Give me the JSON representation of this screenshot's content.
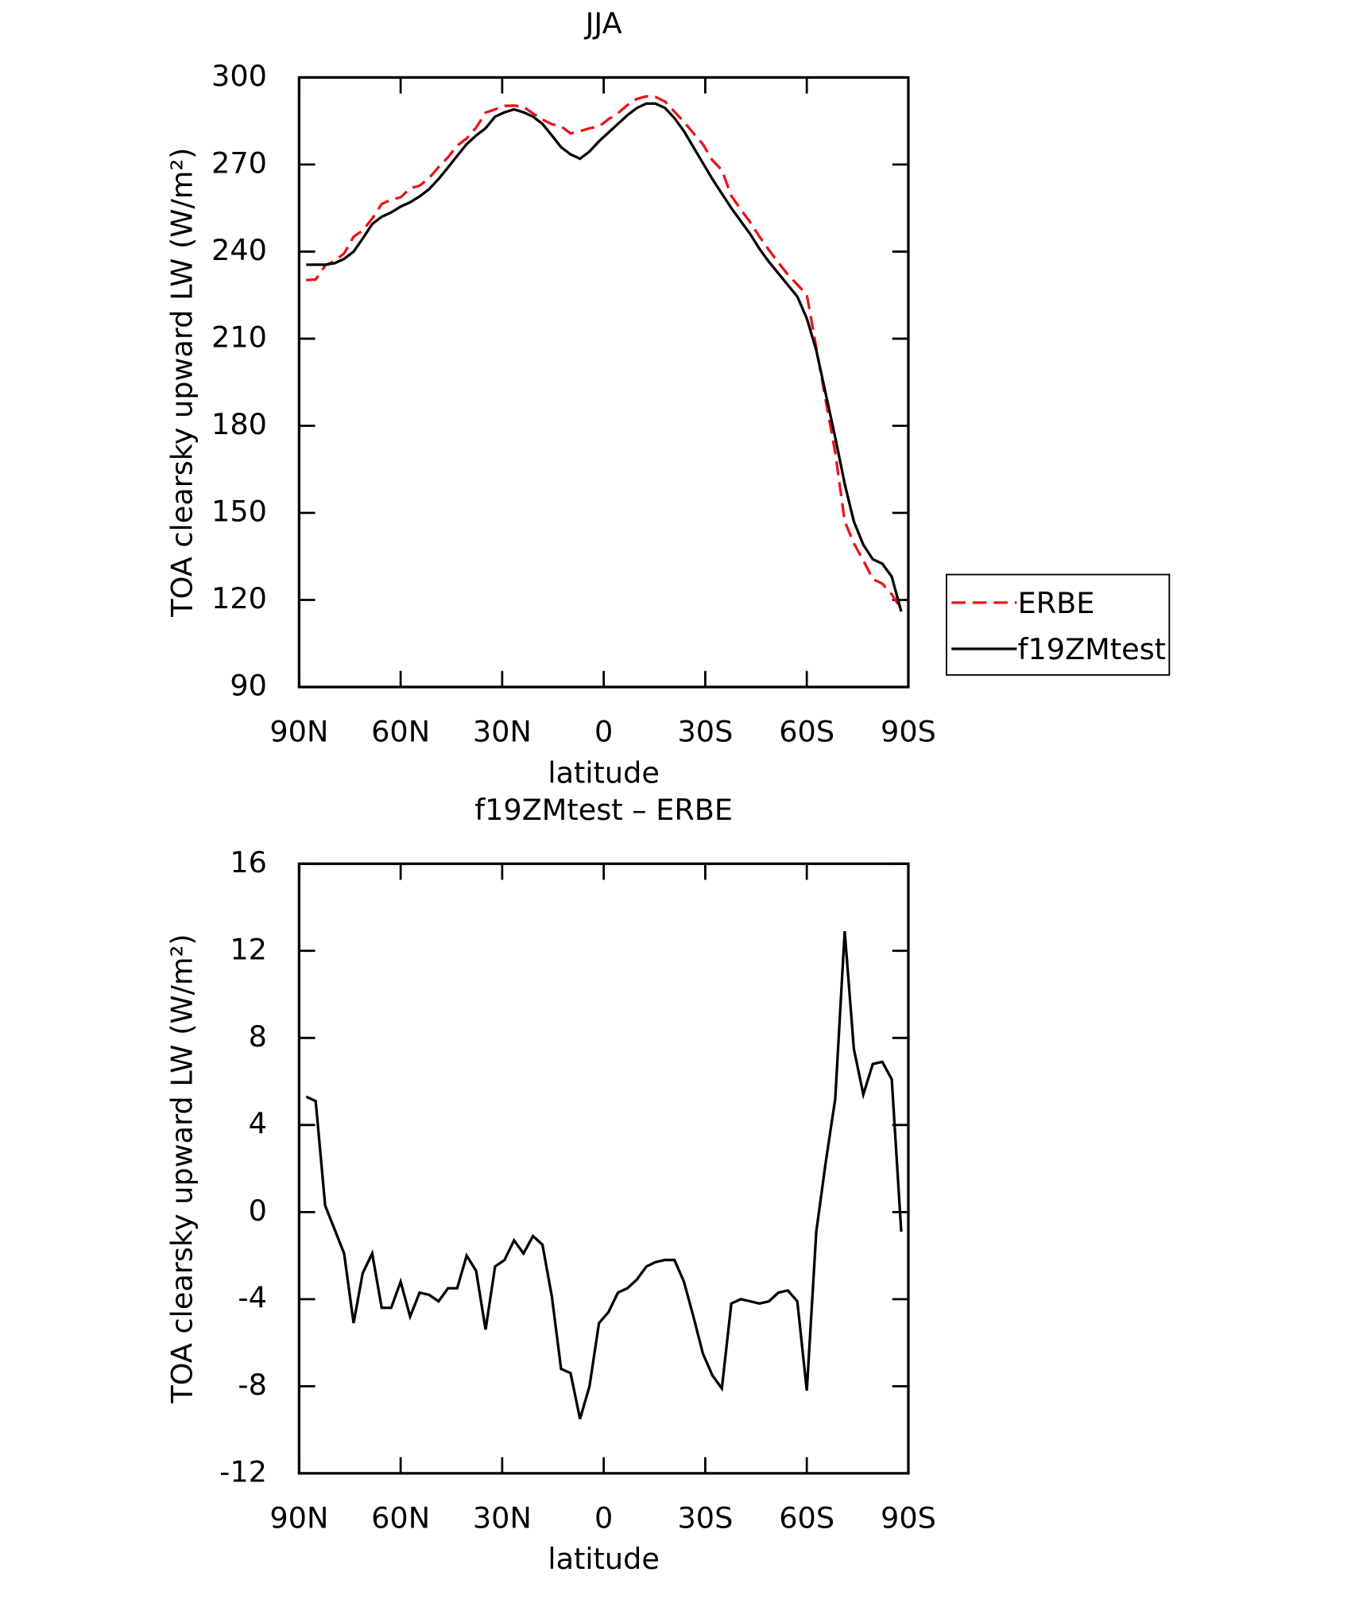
{
  "chart_data": [
    {
      "type": "line",
      "title": "JJA",
      "xlabel": "latitude",
      "ylabel": "TOA clearsky upward LW (W/m²)",
      "x": [
        87.9,
        85.1,
        82.3,
        79.5,
        76.7,
        73.9,
        71.2,
        68.4,
        65.6,
        62.8,
        60.0,
        57.2,
        54.4,
        51.6,
        48.8,
        46.0,
        43.3,
        40.5,
        37.7,
        34.9,
        32.1,
        29.3,
        26.5,
        23.7,
        20.9,
        18.1,
        15.3,
        12.6,
        9.8,
        7.0,
        4.2,
        1.4,
        -1.4,
        -4.2,
        -7.0,
        -9.8,
        -12.6,
        -15.3,
        -18.1,
        -20.9,
        -23.7,
        -26.5,
        -29.3,
        -32.1,
        -34.9,
        -37.7,
        -40.5,
        -43.3,
        -46.0,
        -48.8,
        -51.6,
        -54.4,
        -57.2,
        -60.0,
        -62.8,
        -65.6,
        -68.4,
        -71.2,
        -73.9,
        -76.7,
        -79.5,
        -82.3,
        -85.1,
        -87.9
      ],
      "series": [
        {
          "name": "ERBE",
          "color": "#e8141a",
          "linestyle": "dashed",
          "values": [
            230.2,
            230.4,
            235.2,
            236.8,
            239.4,
            245.1,
            247.3,
            251.4,
            256.4,
            257.9,
            258.7,
            261.8,
            262.7,
            265.3,
            269.1,
            272.5,
            276.5,
            279.0,
            282.7,
            287.9,
            289.0,
            290.2,
            290.3,
            289.9,
            287.6,
            285.5,
            283.9,
            283.2,
            280.7,
            281.5,
            282.5,
            283.1,
            285.6,
            287.7,
            290.5,
            292.6,
            293.5,
            293.3,
            291.7,
            288.2,
            284.7,
            280.8,
            277.0,
            271.5,
            268.1,
            259.2,
            254.5,
            250.1,
            245.2,
            240.6,
            236.2,
            232.1,
            228.6,
            225.2,
            206.9,
            188.7,
            170.8,
            147.1,
            139.5,
            133.6,
            127.2,
            125.6,
            121.9,
            116.9
          ]
        },
        {
          "name": "f19ZMtest",
          "color": "#000000",
          "linestyle": "solid",
          "values": [
            235.5,
            235.5,
            235.5,
            236,
            237.5,
            240,
            244.5,
            249.5,
            252,
            253.5,
            255.5,
            257,
            259,
            261.5,
            265,
            269,
            273,
            277,
            280,
            282.5,
            286.5,
            288,
            289,
            288,
            286.5,
            284,
            280,
            276,
            273.5,
            272,
            274.5,
            278,
            281,
            284,
            287,
            289.5,
            291,
            291,
            289.5,
            286,
            281.5,
            276,
            270.5,
            265,
            260,
            255,
            250.5,
            246,
            241,
            236.5,
            232.5,
            228.5,
            224.5,
            217,
            206,
            191,
            176,
            160,
            147,
            139,
            134,
            132.5,
            128,
            116
          ]
        }
      ],
      "xlim": [
        90,
        -90
      ],
      "xticks": [
        {
          "value": 90,
          "label": "90N"
        },
        {
          "value": 60,
          "label": "60N"
        },
        {
          "value": 30,
          "label": "30N"
        },
        0,
        {
          "value": -30,
          "label": "30S"
        },
        {
          "value": -60,
          "label": "60S"
        },
        {
          "value": -90,
          "label": "90S"
        }
      ],
      "ylim": [
        90,
        300
      ],
      "yticks": [
        90,
        120,
        150,
        180,
        210,
        240,
        270,
        300
      ],
      "legend": "outside-right"
    },
    {
      "type": "line",
      "title": "f19ZMtest – ERBE",
      "xlabel": "latitude",
      "ylabel": "TOA clearsky upward LW (W/m²)",
      "x": [
        87.9,
        85.1,
        82.3,
        79.5,
        76.7,
        73.9,
        71.2,
        68.4,
        65.6,
        62.8,
        60.0,
        57.2,
        54.4,
        51.6,
        48.8,
        46.0,
        43.3,
        40.5,
        37.7,
        34.9,
        32.1,
        29.3,
        26.5,
        23.7,
        20.9,
        18.1,
        15.3,
        12.6,
        9.8,
        7.0,
        4.2,
        1.4,
        -1.4,
        -4.2,
        -7.0,
        -9.8,
        -12.6,
        -15.3,
        -18.1,
        -20.9,
        -23.7,
        -26.5,
        -29.3,
        -32.1,
        -34.9,
        -37.7,
        -40.5,
        -43.3,
        -46.0,
        -48.8,
        -51.6,
        -54.4,
        -57.2,
        -60.0,
        -62.8,
        -65.6,
        -68.4,
        -71.2,
        -73.9,
        -76.7,
        -79.5,
        -82.3,
        -85.1,
        -87.9
      ],
      "series": [
        {
          "color": "#000000",
          "linestyle": "solid",
          "values": [
            5.3,
            5.1,
            0.3,
            -0.8,
            -1.9,
            -5.1,
            -2.8,
            -1.9,
            -4.4,
            -4.4,
            -3.2,
            -4.8,
            -3.7,
            -3.8,
            -4.1,
            -3.5,
            -3.5,
            -2.0,
            -2.7,
            -5.4,
            -2.5,
            -2.2,
            -1.3,
            -1.9,
            -1.1,
            -1.5,
            -3.9,
            -7.2,
            -7.4,
            -9.5,
            -8.0,
            -5.1,
            -4.6,
            -3.7,
            -3.5,
            -3.1,
            -2.5,
            -2.3,
            -2.2,
            -2.2,
            -3.2,
            -4.8,
            -6.5,
            -7.5,
            -8.1,
            -4.2,
            -4.0,
            -4.1,
            -4.2,
            -4.1,
            -3.7,
            -3.6,
            -4.1,
            -8.2,
            -0.9,
            2.3,
            5.2,
            12.9,
            7.5,
            5.4,
            6.8,
            6.9,
            6.1,
            -0.9
          ]
        }
      ],
      "xlim": [
        90,
        -90
      ],
      "xticks": [
        {
          "value": 90,
          "label": "90N"
        },
        {
          "value": 60,
          "label": "60N"
        },
        {
          "value": 30,
          "label": "30N"
        },
        0,
        {
          "value": -30,
          "label": "30S"
        },
        {
          "value": -60,
          "label": "60S"
        },
        {
          "value": -90,
          "label": "90S"
        }
      ],
      "ylim": [
        -12,
        16
      ],
      "yticks": [
        -12,
        -8,
        -4,
        0,
        4,
        8,
        12,
        16
      ]
    }
  ]
}
